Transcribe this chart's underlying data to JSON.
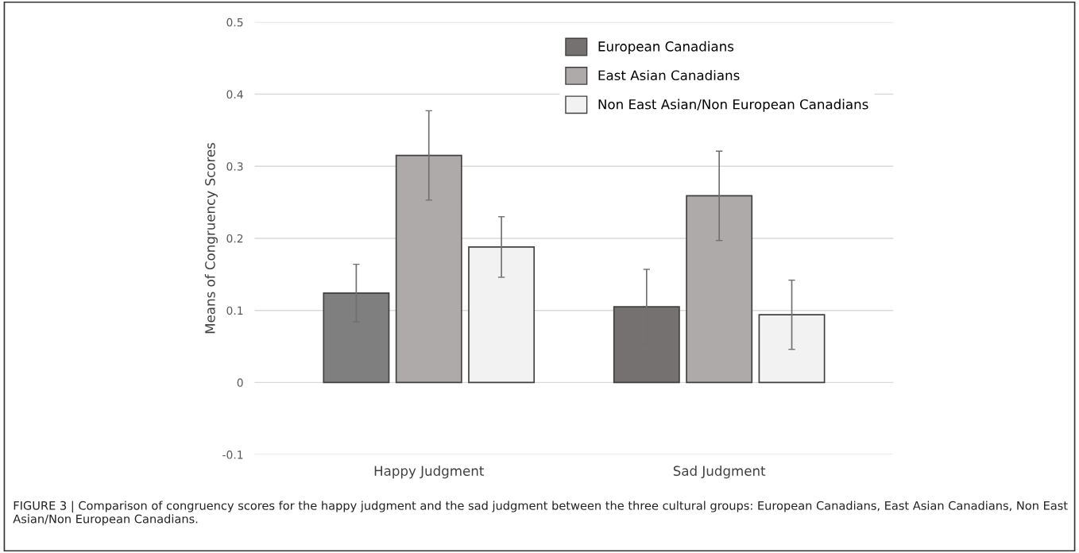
{
  "chart_data": {
    "type": "bar",
    "ylabel": "Means of Congruency Scores",
    "categories": [
      "Happy Judgment",
      "Sad Judgment"
    ],
    "series": [
      {
        "name": "European Canadians",
        "color": "#767171",
        "colors": [
          "#7f7f7f",
          "#767171"
        ],
        "values": [
          0.124,
          0.105
        ],
        "errors": [
          0.04,
          0.052
        ]
      },
      {
        "name": "East Asian Canadians",
        "color": "#aeaaaa",
        "values": [
          0.315,
          0.259
        ],
        "errors": [
          0.062,
          0.062
        ]
      },
      {
        "name": "Non East Asian/Non European Canadians",
        "color": "#f2f2f2",
        "values": [
          0.188,
          0.094
        ],
        "errors": [
          0.042,
          0.048
        ]
      }
    ],
    "ylim": [
      -0.1,
      0.5
    ],
    "yticks": [
      {
        "value": -0.1,
        "label": "-0.1"
      },
      0,
      0.1,
      0.2,
      0.3,
      0.4,
      0.5
    ],
    "grid": "y",
    "legend": "top right",
    "annotations": [
      "FIGURE 3 | Comparison of congruency scores for the happy judgment and the sad judgment between the three cultural groups: European Canadians, East Asian Canadians, Non East Asian/Non European Canadians."
    ]
  }
}
